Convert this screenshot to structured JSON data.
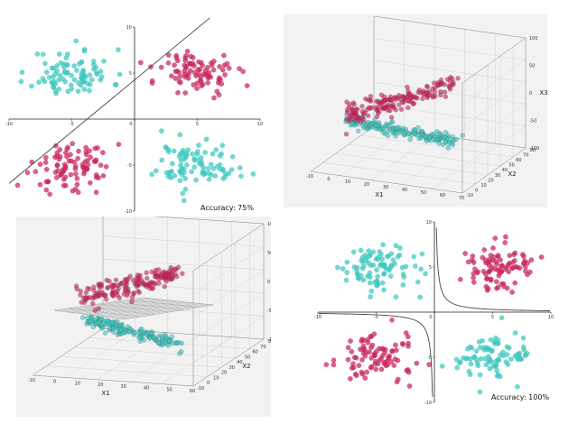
{
  "colors": {
    "cyan": "#3ec7bf",
    "crimson": "#c8255f",
    "line": "#444444",
    "plane": "#9a9a9a"
  },
  "chart_data": [
    {
      "type": "scatter",
      "title": "",
      "xlim": [
        -10,
        10
      ],
      "ylim": [
        -10,
        10
      ],
      "x_ticks": [
        "-10",
        "-5",
        "0",
        "5",
        "10"
      ],
      "y_ticks": [
        "10",
        "5",
        "-5",
        "-10"
      ],
      "clusters": [
        {
          "color": "cyan",
          "center": [
            -5,
            5
          ],
          "spread": 1.6,
          "count": 90
        },
        {
          "color": "crimson",
          "center": [
            5,
            5
          ],
          "spread": 1.6,
          "count": 90
        },
        {
          "color": "crimson",
          "center": [
            -5,
            -5
          ],
          "spread": 1.6,
          "count": 90
        },
        {
          "color": "cyan",
          "center": [
            5,
            -5
          ],
          "spread": 1.6,
          "count": 90
        }
      ],
      "decision_line": [
        [
          -10,
          -7
        ],
        [
          6,
          11
        ]
      ],
      "annotation": "Accuracy: 75%"
    },
    {
      "type": "scatter",
      "title": "",
      "projection": "3d",
      "xlabel": "X1",
      "ylabel": "X2",
      "zlabel": "X3",
      "x_ticks": [
        "-10",
        "0",
        "10",
        "20",
        "30",
        "40",
        "50",
        "60",
        "70"
      ],
      "y_ticks": [
        "-10",
        "0",
        "10",
        "20",
        "30",
        "40",
        "50",
        "60",
        "70",
        "80"
      ],
      "z_ticks": [
        "100",
        "50",
        "0",
        "-50",
        "-100"
      ],
      "clusters": [
        {
          "color": "crimson",
          "band": "upper",
          "count": 170
        },
        {
          "color": "cyan",
          "band": "lower",
          "count": 170
        }
      ]
    },
    {
      "type": "scatter",
      "title": "",
      "projection": "3d",
      "xlabel": "X1",
      "ylabel": "X2",
      "zlabel": "X3",
      "x_ticks": [
        "-10",
        "0",
        "10",
        "20",
        "30",
        "40",
        "50",
        "60"
      ],
      "y_ticks": [
        "-10",
        "0",
        "10",
        "20",
        "30",
        "40",
        "50",
        "60",
        "70",
        "80"
      ],
      "z_ticks": [
        "100",
        "50",
        "0",
        "-50",
        "-100"
      ],
      "clusters": [
        {
          "color": "crimson",
          "band": "upper",
          "count": 170
        },
        {
          "color": "cyan",
          "band": "lower",
          "count": 170
        }
      ],
      "separating_plane": true
    },
    {
      "type": "scatter",
      "title": "",
      "xlim": [
        -10,
        10
      ],
      "ylim": [
        -10,
        10
      ],
      "x_ticks": [
        "-10",
        "-5",
        "0",
        "5",
        "10"
      ],
      "y_ticks": [
        "10",
        "5",
        "-5",
        "-10"
      ],
      "clusters": [
        {
          "color": "cyan",
          "center": [
            -5,
            5
          ],
          "spread": 1.6,
          "count": 90
        },
        {
          "color": "crimson",
          "center": [
            5,
            5
          ],
          "spread": 1.6,
          "count": 90
        },
        {
          "color": "crimson",
          "center": [
            -5,
            -5
          ],
          "spread": 1.6,
          "count": 90
        },
        {
          "color": "cyan",
          "center": [
            5,
            -5
          ],
          "spread": 1.6,
          "count": 90
        }
      ],
      "decision_curve": "hyperbola",
      "annotation": "Accuracy: 100%"
    }
  ]
}
